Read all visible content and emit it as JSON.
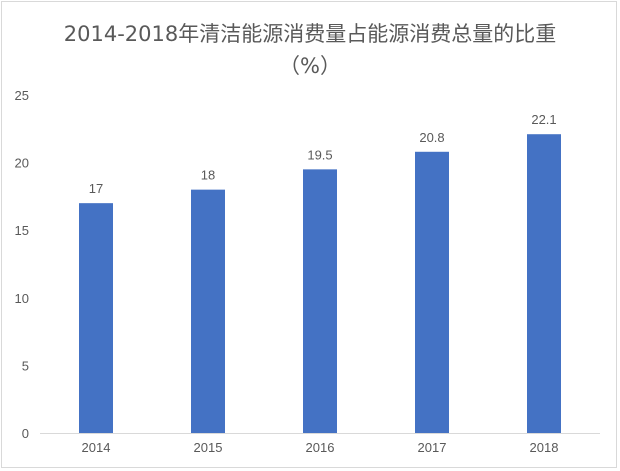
{
  "chart_data": {
    "type": "bar",
    "title": "2014-2018年清洁能源消费量占能源消费总量的比重（%）",
    "categories": [
      "2014",
      "2015",
      "2016",
      "2017",
      "2018"
    ],
    "series": [
      {
        "values": [
          17,
          18,
          19.5,
          20.8,
          22.1
        ]
      }
    ],
    "data_labels": [
      "17",
      "18",
      "19.5",
      "20.8",
      "22.1"
    ],
    "y_ticks": [
      "0",
      "5",
      "10",
      "15",
      "20",
      "25"
    ],
    "ylim": [
      0,
      25
    ],
    "grid": false,
    "legend": "none",
    "bar_color": "#4472c4",
    "axis_color": "#d9d9d9"
  }
}
